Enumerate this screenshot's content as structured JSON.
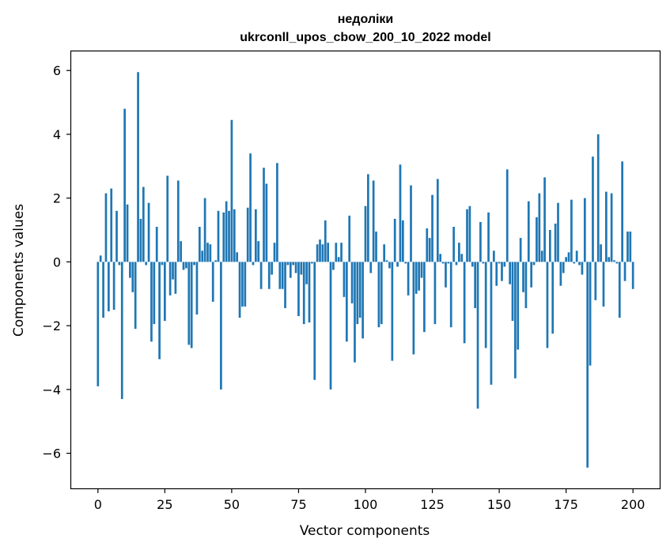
{
  "chart_data": {
    "type": "bar",
    "title": "недоліки",
    "subtitle": "ukrconll_upos_cbow_200_10_2022 model",
    "xlabel": "Vector components",
    "ylabel": "Components values",
    "xlim": [
      -10,
      210
    ],
    "ylim": [
      -7.1,
      6.6
    ],
    "xticks": [
      0,
      25,
      50,
      75,
      100,
      125,
      150,
      175,
      200
    ],
    "xtick_labels": [
      "0",
      "25",
      "50",
      "75",
      "100",
      "125",
      "150",
      "175",
      "200"
    ],
    "yticks": [
      -6,
      -4,
      -2,
      0,
      2,
      4,
      6
    ],
    "ytick_labels": [
      "−6",
      "−4",
      "−2",
      "0",
      "2",
      "4",
      "6"
    ],
    "grid": false,
    "bar_color": "#1f77b4",
    "series": [
      {
        "values": [
          -3.9,
          0.2,
          -1.75,
          2.15,
          -1.55,
          2.3,
          -1.5,
          1.6,
          -0.1,
          -4.3,
          4.8,
          1.8,
          -0.5,
          -0.95,
          -2.1,
          5.95,
          1.35,
          2.35,
          -0.1,
          1.85,
          -2.5,
          -1.95,
          1.1,
          -3.05,
          -0.1,
          -1.85,
          2.7,
          -1.05,
          -0.55,
          -1.0,
          2.55,
          0.65,
          -0.25,
          -0.2,
          -2.6,
          -2.7,
          -0.1,
          -1.65,
          1.1,
          0.35,
          2.0,
          0.6,
          0.55,
          -1.25,
          0.05,
          1.6,
          -4.0,
          1.55,
          1.9,
          1.6,
          4.45,
          1.65,
          0.3,
          -1.75,
          -1.4,
          -1.4,
          1.7,
          3.4,
          -0.1,
          1.65,
          0.65,
          -0.85,
          2.95,
          2.45,
          -0.85,
          -0.4,
          0.6,
          3.1,
          -0.85,
          -0.85,
          -1.45,
          -0.1,
          -0.5,
          -0.1,
          -0.35,
          -1.7,
          -0.4,
          -1.95,
          -0.7,
          -1.9,
          -0.05,
          -3.7,
          0.55,
          0.7,
          0.55,
          1.3,
          0.6,
          -4.0,
          -0.25,
          0.6,
          0.15,
          0.6,
          -1.1,
          -2.5,
          1.45,
          -1.3,
          -3.15,
          -1.95,
          -1.75,
          -2.4,
          1.75,
          2.75,
          -0.35,
          2.55,
          0.95,
          -2.05,
          -1.95,
          0.55,
          0.05,
          -0.2,
          -3.1,
          1.35,
          -0.15,
          3.05,
          1.3,
          -0.05,
          -1.05,
          2.4,
          -2.9,
          -1.0,
          -0.9,
          -0.5,
          -2.2,
          1.05,
          0.75,
          2.1,
          -1.95,
          2.6,
          0.25,
          -0.05,
          -0.8,
          -0.05,
          -2.05,
          1.1,
          -0.1,
          0.6,
          0.25,
          -2.55,
          1.65,
          1.75,
          -0.15,
          -1.45,
          -4.6,
          1.25,
          -0.05,
          -2.7,
          1.55,
          -3.85,
          0.35,
          -0.75,
          -0.05,
          -0.6,
          -0.15,
          2.9,
          -0.7,
          -1.85,
          -3.65,
          -2.75,
          0.75,
          -0.95,
          -1.45,
          1.9,
          -0.8,
          -0.1,
          1.4,
          2.15,
          0.35,
          2.65,
          -2.7,
          1.0,
          -2.25,
          1.2,
          1.85,
          -0.75,
          -0.35,
          0.15,
          0.3,
          1.95,
          -0.05,
          0.35,
          -0.1,
          -0.4,
          2.0,
          -6.45,
          -3.25,
          3.3,
          -1.2,
          4.0,
          0.55,
          -1.4,
          2.2,
          0.15,
          2.15,
          0.05,
          -0.05,
          -1.75,
          3.15,
          -0.6,
          0.95,
          0.95,
          -0.85
        ]
      }
    ]
  }
}
